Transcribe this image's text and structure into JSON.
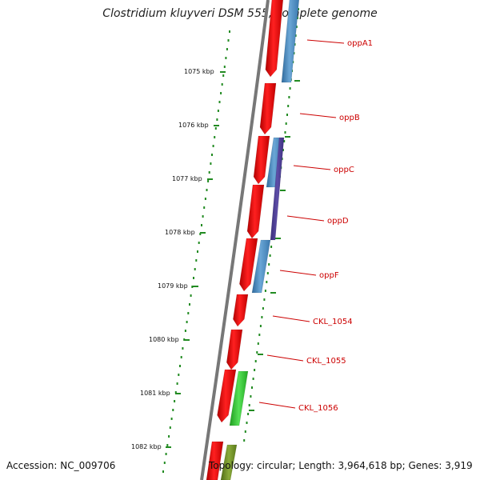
{
  "title": "Clostridium kluyveri DSM 555, complete genome",
  "accession": "Accession: NC_009706",
  "stats": "Topology: circular; Length: 3,964,618 bp; Genes: 3,919",
  "ticks": [
    "1075 kbp",
    "1076 kbp",
    "1077 kbp",
    "1078 kbp",
    "1079 kbp",
    "1080 kbp",
    "1081 kbp",
    "1082 kbp"
  ],
  "genes": [
    "oppA1",
    "oppB",
    "oppC",
    "oppD",
    "oppF",
    "CKL_1054",
    "CKL_1055",
    "CKL_1056"
  ],
  "colors": {
    "backbone": "#777777",
    "forward": "#ee0000",
    "blue": "#4a86bb",
    "purple": "#4b3d8f",
    "green": "#33cc33",
    "olive": "#6b8e23",
    "dots": "#228b22",
    "label": "#cc0000"
  }
}
